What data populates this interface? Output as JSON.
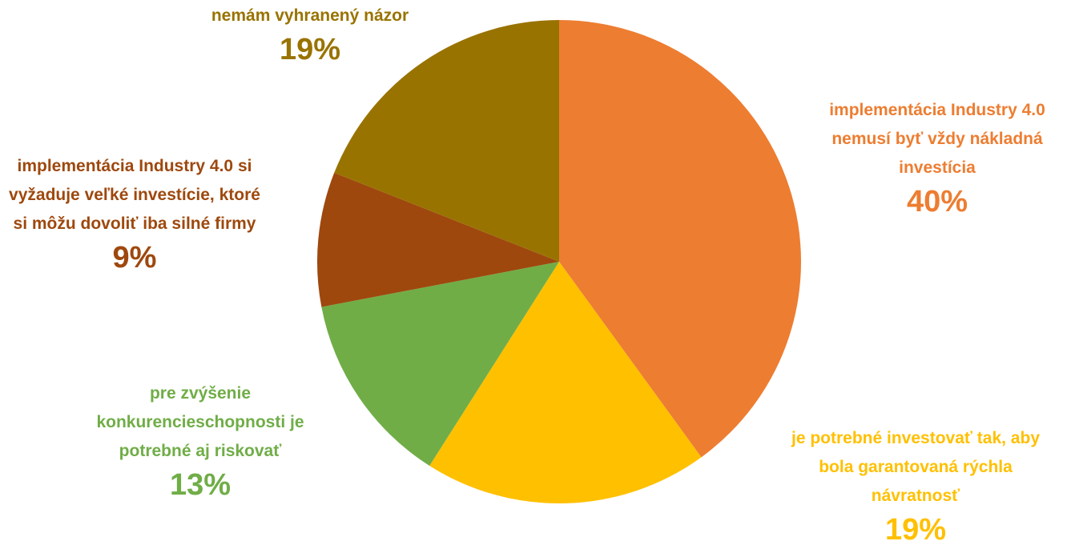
{
  "chart_data": {
    "type": "pie",
    "categories": [
      "implementácia Industry 4.0 nemusí byť vždy nákladná investícia",
      "je potrebné investovať tak, aby bola garantovaná rýchla návratnosť",
      "pre zvýšenie konkurencieschopnosti je potrebné aj riskovať",
      "implementácia Industry 4.0 si vyžaduje veľké investície, ktoré si môžu dovoliť iba silné firmy",
      "nemám vyhranený názor"
    ],
    "values": [
      40,
      19,
      13,
      9,
      19
    ],
    "value_labels": [
      "40%",
      "19%",
      "13%",
      "9%",
      "19%"
    ],
    "colors": [
      "#ED7D31",
      "#FFC000",
      "#70AD47",
      "#9E480E",
      "#997300"
    ]
  }
}
